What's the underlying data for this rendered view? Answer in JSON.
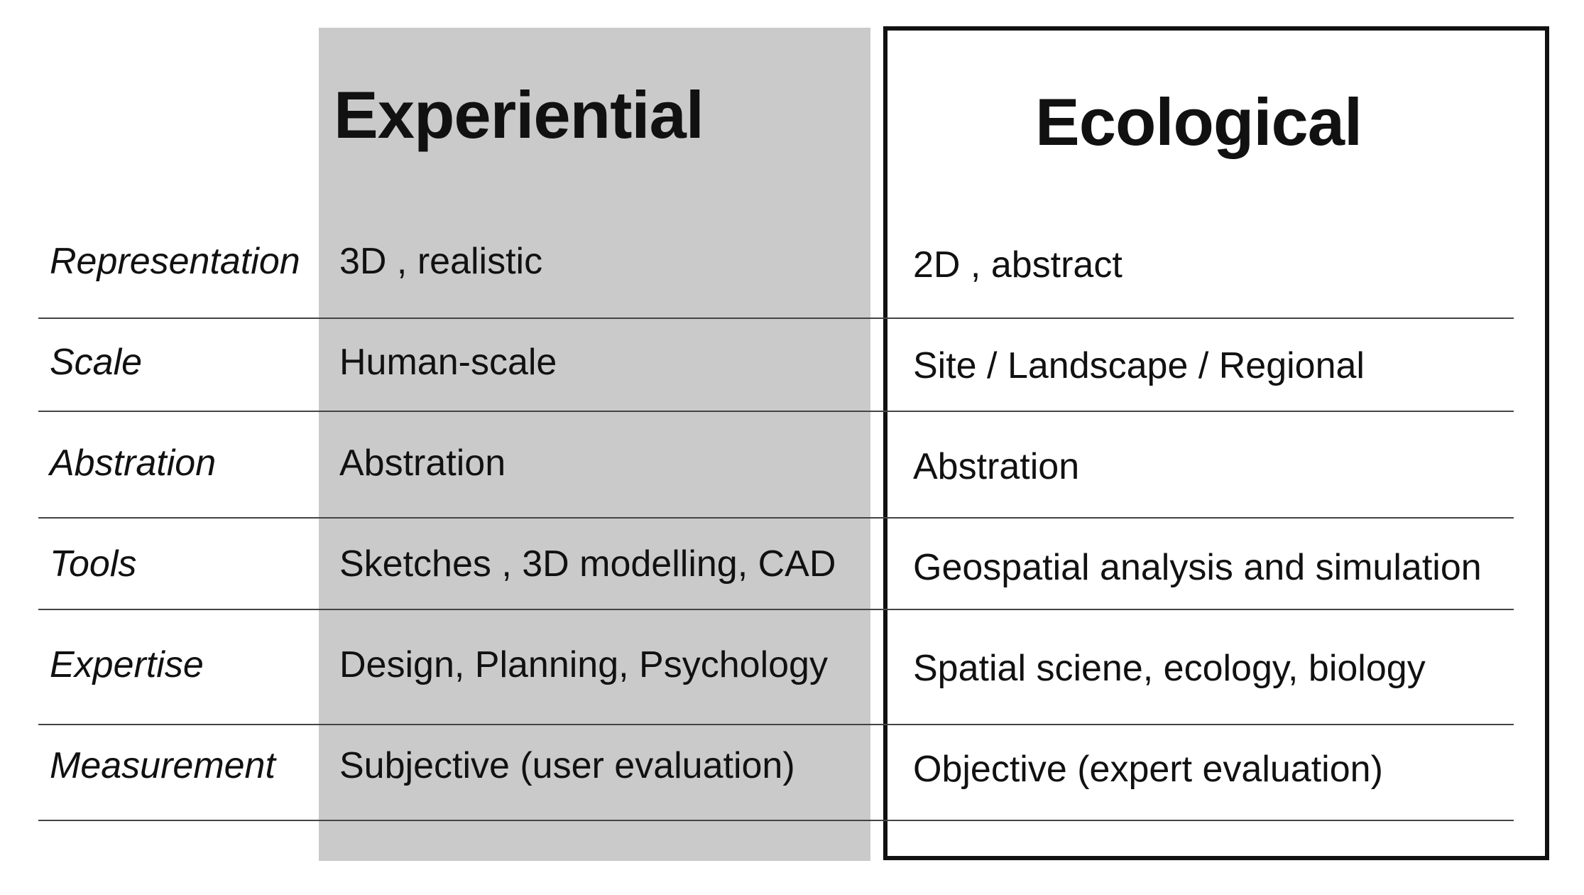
{
  "columns": {
    "experiential": "Experiential",
    "ecological": "Ecological"
  },
  "rows": [
    {
      "label": "Representation",
      "experiential": "3D , realistic",
      "ecological": "2D , abstract"
    },
    {
      "label": "Scale",
      "experiential": "Human-scale",
      "ecological": "Site / Landscape / Regional"
    },
    {
      "label": "Abstration",
      "experiential": "Abstration",
      "ecological": "Abstration"
    },
    {
      "label": "Tools",
      "experiential": "Sketches , 3D modelling, CAD",
      "ecological": "Geospatial analysis and simulation"
    },
    {
      "label": "Expertise",
      "experiential": "Design, Planning, Psychology",
      "ecological": "Spatial sciene, ecology, biology"
    },
    {
      "label": "Measurement",
      "experiential": "Subjective (user evaluation)",
      "ecological": "Objective  (expert evaluation)"
    }
  ],
  "colors": {
    "experiential_fill": "#cacaca",
    "ecological_border": "#111111"
  }
}
